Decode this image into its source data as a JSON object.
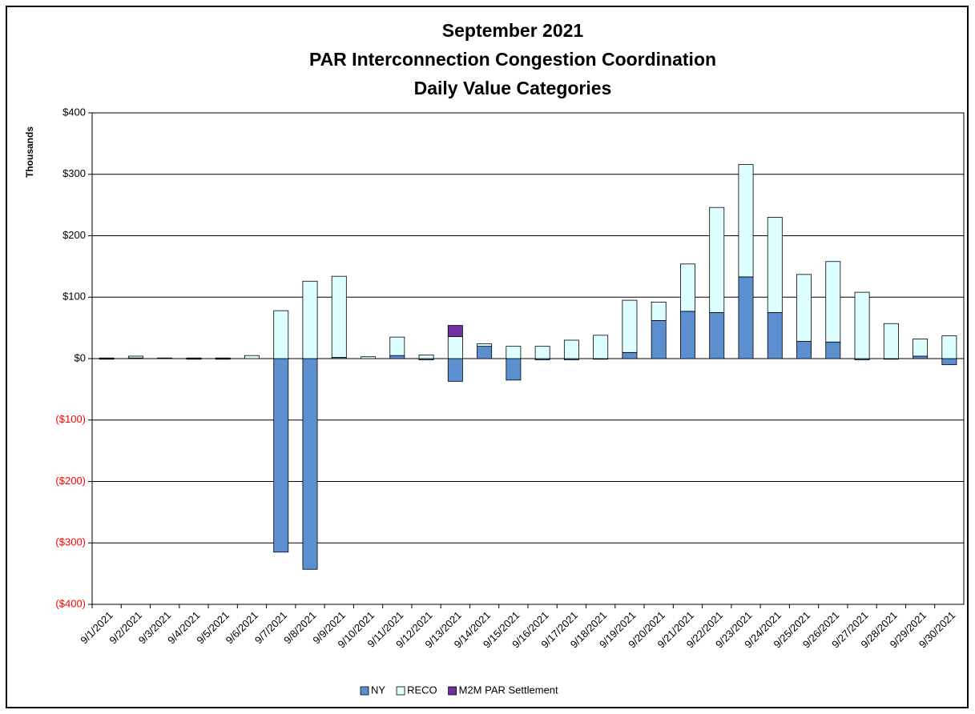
{
  "chart_data": {
    "type": "stacked_bar",
    "title": [
      "September 2021",
      "PAR Interconnection Congestion Coordination",
      "Daily Value Categories"
    ],
    "y_label": "Thousands",
    "categories": [
      "9/1/2021",
      "9/2/2021",
      "9/3/2021",
      "9/4/2021",
      "9/5/2021",
      "9/6/2021",
      "9/7/2021",
      "9/8/2021",
      "9/9/2021",
      "9/10/2021",
      "9/11/2021",
      "9/12/2021",
      "9/13/2021",
      "9/14/2021",
      "9/15/2021",
      "9/16/2021",
      "9/17/2021",
      "9/18/2021",
      "9/19/2021",
      "9/20/2021",
      "9/21/2021",
      "9/22/2021",
      "9/23/2021",
      "9/24/2021",
      "9/25/2021",
      "9/26/2021",
      "9/27/2021",
      "9/28/2021",
      "9/29/2021",
      "9/30/2021"
    ],
    "series": [
      {
        "name": "NY",
        "color": "#5b8fd0",
        "values": [
          -1,
          1,
          0,
          -1,
          -1,
          0,
          -315,
          -343,
          2,
          0,
          5,
          -2,
          -37,
          20,
          -35,
          -2,
          -2,
          -1,
          10,
          62,
          77,
          75,
          133,
          75,
          28,
          27,
          -2,
          -1,
          4,
          -10
        ]
      },
      {
        "name": "RECO",
        "color": "#ddffff",
        "values": [
          1,
          3,
          1,
          1,
          1,
          5,
          78,
          126,
          132,
          3,
          30,
          6,
          36,
          4,
          20,
          20,
          30,
          38,
          85,
          30,
          77,
          171,
          183,
          155,
          109,
          131,
          108,
          57,
          28,
          37
        ]
      },
      {
        "name": "M2M PAR Settlement",
        "color": "#7030a0",
        "values": [
          0,
          0,
          0,
          0,
          0,
          0,
          0,
          0,
          0,
          0,
          0,
          0,
          18,
          0,
          0,
          0,
          0,
          0,
          0,
          0,
          0,
          0,
          0,
          0,
          0,
          0,
          0,
          0,
          0,
          0
        ]
      }
    ],
    "ylim": [
      -400,
      400
    ],
    "yticks": [
      {
        "value": -400,
        "label": "($400)"
      },
      {
        "value": -300,
        "label": "($300)"
      },
      {
        "value": -200,
        "label": "($200)"
      },
      {
        "value": -100,
        "label": "($100)"
      },
      {
        "value": 0,
        "label": "$0"
      },
      {
        "value": 100,
        "label": "$100"
      },
      {
        "value": 200,
        "label": "$200"
      },
      {
        "value": 300,
        "label": "$300"
      },
      {
        "value": 400,
        "label": "$400"
      }
    ],
    "negative_tick_color": "#ff0000",
    "grid": true,
    "legend": "bottom"
  }
}
